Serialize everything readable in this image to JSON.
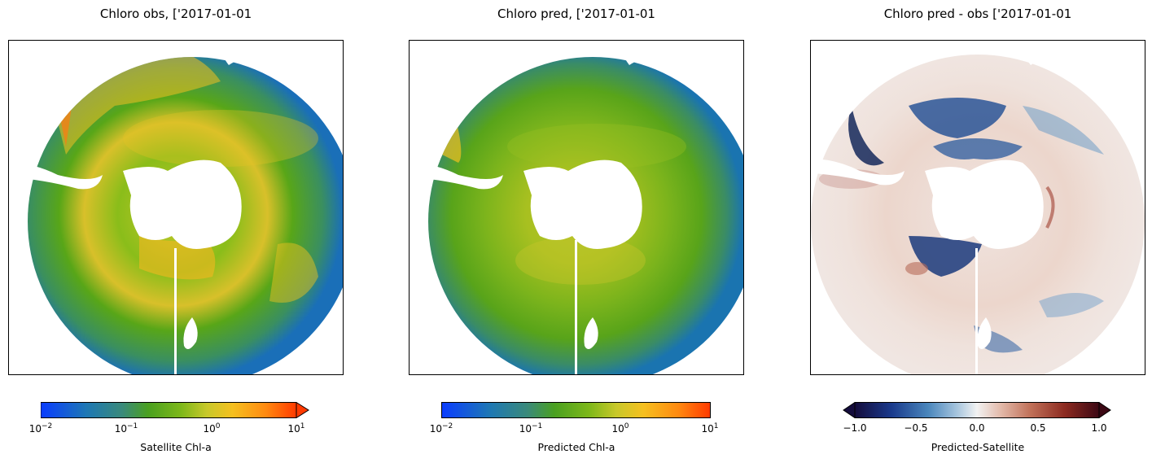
{
  "panels": [
    {
      "id": "obs",
      "title": "Chloro obs, ['2017-01-01",
      "colorbar": {
        "label": "Satellite Chl-a",
        "scale": "log",
        "extend": "max",
        "ticks": [
          {
            "base": "10",
            "exp": "−2"
          },
          {
            "base": "10",
            "exp": "−1"
          },
          {
            "base": "10",
            "exp": "0"
          },
          {
            "base": "10",
            "exp": "1"
          }
        ]
      }
    },
    {
      "id": "pred",
      "title": "Chloro pred, ['2017-01-01",
      "colorbar": {
        "label": "Predicted Chl-a",
        "scale": "log",
        "extend": "neither",
        "ticks": [
          {
            "base": "10",
            "exp": "−2"
          },
          {
            "base": "10",
            "exp": "−1"
          },
          {
            "base": "10",
            "exp": "0"
          },
          {
            "base": "10",
            "exp": "1"
          }
        ]
      }
    },
    {
      "id": "diff",
      "title": "Chloro pred - obs ['2017-01-01",
      "colorbar": {
        "label": "Predicted-Satellite",
        "scale": "linear",
        "extend": "both",
        "ticks": [
          "−1.0",
          "−0.5",
          "0.0",
          "0.5",
          "1.0"
        ]
      }
    }
  ],
  "colors": {
    "chl_scale": [
      "#0a3cff",
      "#1e78b4",
      "#3a8a7a",
      "#4aa020",
      "#7eb81a",
      "#c8c82a",
      "#f5c020",
      "#ff8a10",
      "#ff3a00"
    ],
    "diff_scale": [
      "#140c3c",
      "#1a3a8c",
      "#4a86bc",
      "#a8c6de",
      "#f2f2f2",
      "#e2b8a8",
      "#c07058",
      "#8c2a20",
      "#3c0814"
    ],
    "land": "#ffffff",
    "frame": "#000000"
  }
}
